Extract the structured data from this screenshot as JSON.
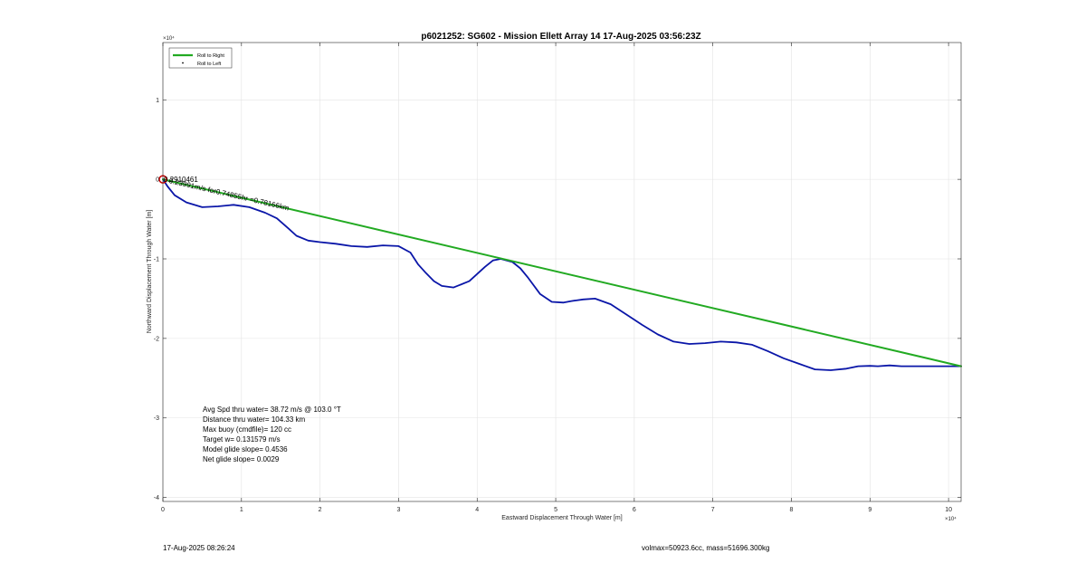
{
  "chart_data": {
    "type": "line",
    "title": "p6021252: SG602 - Mission Ellett Array 14 17-Aug-2025 03:56:23Z",
    "xlabel": "Eastward Displacement Through Water [m]",
    "ylabel": "Northward Displacement Through Water [m]",
    "x_exponent_label": "×10⁴",
    "y_exponent_label": "×10⁴",
    "xlim": [
      0,
      101600
    ],
    "ylim": [
      -40500,
      17200
    ],
    "x_ticks": [
      {
        "value": 0,
        "label": "0"
      },
      {
        "value": 10000,
        "label": "1"
      },
      {
        "value": 20000,
        "label": "2"
      },
      {
        "value": 30000,
        "label": "3"
      },
      {
        "value": 40000,
        "label": "4"
      },
      {
        "value": 50000,
        "label": "5"
      },
      {
        "value": 60000,
        "label": "6"
      },
      {
        "value": 70000,
        "label": "7"
      },
      {
        "value": 80000,
        "label": "8"
      },
      {
        "value": 90000,
        "label": "9"
      },
      {
        "value": 100000,
        "label": "10"
      }
    ],
    "y_ticks": [
      {
        "value": 10000,
        "label": "1"
      },
      {
        "value": 0,
        "label": "0"
      },
      {
        "value": -10000,
        "label": "-1"
      },
      {
        "value": -20000,
        "label": "-2"
      },
      {
        "value": -30000,
        "label": "-3"
      },
      {
        "value": -40000,
        "label": "-4"
      }
    ],
    "grid": true,
    "legend_position": "top-left",
    "legend": [
      {
        "name": "Roll to Right",
        "color": "#22aa22",
        "marker": "line"
      },
      {
        "name": "Roll to Left",
        "color": "#000000",
        "marker": "dot"
      }
    ],
    "series": [
      {
        "name": "Roll to Right",
        "color": "#22aa22",
        "x": [
          0,
          101600
        ],
        "y": [
          0,
          -23500
        ]
      },
      {
        "color": "#0a16a8",
        "x": [
          0,
          600,
          1500,
          3000,
          5000,
          7000,
          9000,
          11000,
          13000,
          14500,
          16000,
          17000,
          18500,
          20000,
          22000,
          24000,
          26000,
          28000,
          30000,
          31500,
          32500,
          33500,
          34500,
          35500,
          37000,
          39000,
          41000,
          42000,
          43000,
          44500,
          45500,
          46500,
          48000,
          49500,
          51000,
          52000,
          53500,
          55000,
          57000,
          59000,
          61000,
          63000,
          65000,
          67000,
          69000,
          71000,
          73000,
          75000,
          77000,
          79000,
          81000,
          83000,
          85000,
          87000,
          88500,
          90000,
          91000,
          92500,
          94000,
          96000,
          98000,
          100000,
          101600
        ],
        "y": [
          0,
          -900,
          -2000,
          -2900,
          -3500,
          -3400,
          -3200,
          -3500,
          -4200,
          -4900,
          -6200,
          -7100,
          -7700,
          -7900,
          -8100,
          -8400,
          -8500,
          -8300,
          -8400,
          -9200,
          -10700,
          -11800,
          -12800,
          -13400,
          -13600,
          -12800,
          -11000,
          -10200,
          -10000,
          -10400,
          -11200,
          -12400,
          -14400,
          -15400,
          -15500,
          -15300,
          -15100,
          -15000,
          -15700,
          -17000,
          -18300,
          -19500,
          -20400,
          -20700,
          -20600,
          -20400,
          -20500,
          -20800,
          -21600,
          -22500,
          -23200,
          -23900,
          -24000,
          -23800,
          -23500,
          -23450,
          -23500,
          -23400,
          -23500,
          -23500,
          -23500,
          -23500,
          -23500
        ]
      }
    ],
    "start_marker": {
      "x": 0,
      "y": 0,
      "color": "#cc0000"
    },
    "annotations": [
      {
        "text": "0.2910461",
        "x": 0,
        "y": 0,
        "rotate": 0
      },
      {
        "text": "0.23991m/s for0.74855hr =0.78166km",
        "x": 600,
        "y": -100,
        "rotate": 13
      }
    ],
    "info_lines": [
      "Avg Spd thru water= 38.72 m/s @ 103.0 °T",
      "Distance thru water= 104.33 km",
      "Max buoy (cmdfile)= 120 cc",
      "Target w= 0.131579 m/s",
      "Model glide slope= 0.4536",
      "Net glide slope= 0.0029"
    ]
  },
  "footer": {
    "timestamp": "17-Aug-2025 08:26:24",
    "vol_mass": "volmax=50923.6cc, mass=51696.300kg"
  }
}
